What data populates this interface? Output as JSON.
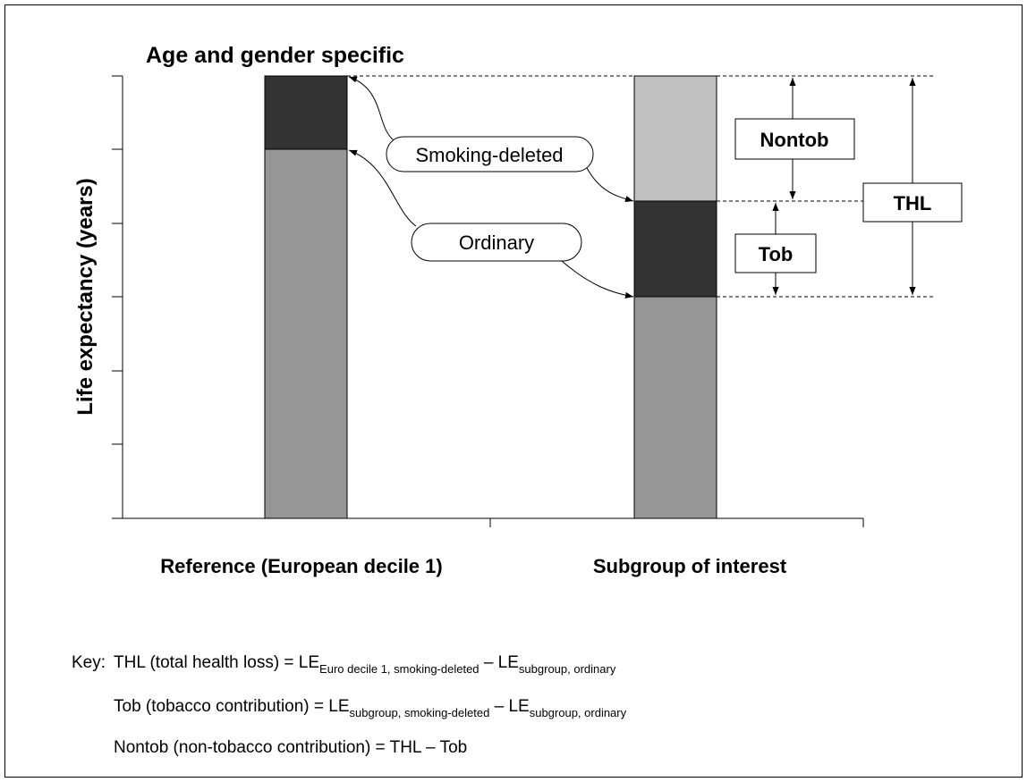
{
  "title": "Age and gender specific",
  "y_axis_label": "Life expectancy (years)",
  "categories": [
    "Reference (European decile 1)",
    "Subgroup of interest"
  ],
  "callouts": [
    "Smoking-deleted",
    "Ordinary"
  ],
  "brackets": [
    "Nontob",
    "Tob",
    "THL"
  ],
  "key": {
    "label": "Key:",
    "lines": [
      [
        "THL (total health loss) = LE",
        "Euro decile 1, smoking-deleted",
        " – LE",
        "subgroup, ordinary"
      ],
      [
        "Tob (tobacco contribution)  = LE",
        "subgroup, smoking-deleted",
        " – LE",
        "subgroup, ordinary"
      ],
      [
        "Nontob (non-tobacco contribution) = THL – Tob"
      ]
    ]
  }
}
